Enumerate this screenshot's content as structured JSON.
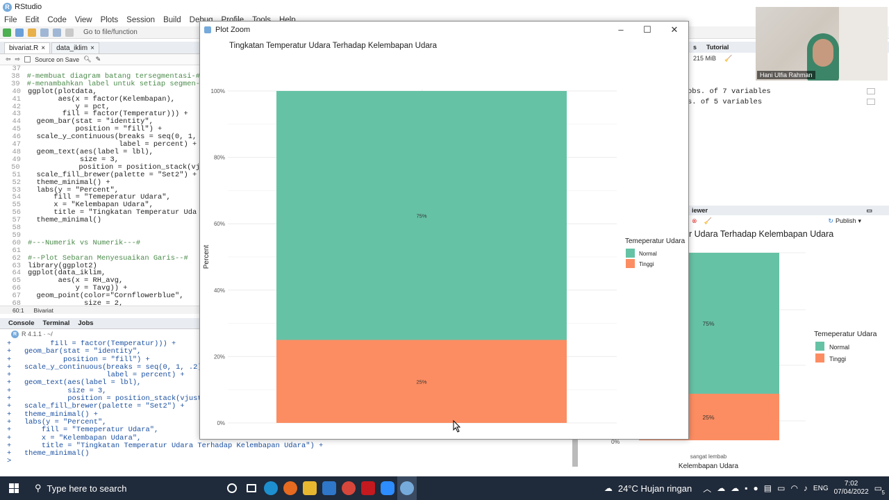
{
  "app": {
    "title": "RStudio",
    "menu": [
      "File",
      "Edit",
      "Code",
      "View",
      "Plots",
      "Session",
      "Build",
      "Debug",
      "Profile",
      "Tools",
      "Help"
    ],
    "goto_file": "Go to file/function"
  },
  "editor": {
    "tabs": [
      "bivariat.R",
      "data_iklim"
    ],
    "source_on_save": "Source on Save",
    "lines": [
      {
        "n": "37",
        "t": ""
      },
      {
        "n": "38",
        "t": "#-membuat diagram batang tersegmentasi-#",
        "c": "cm"
      },
      {
        "n": "39",
        "t": "#-menambahkan label untuk setiap segmen-",
        "c": "cm"
      },
      {
        "n": "40",
        "t": "ggplot(plotdata,"
      },
      {
        "n": "41",
        "t": "       aes(x = factor(Kelembapan),"
      },
      {
        "n": "42",
        "t": "           y = pct,"
      },
      {
        "n": "43",
        "t": "        fill = factor(Temperatur))) +"
      },
      {
        "n": "44",
        "t": "  geom_bar(stat = \"identity\","
      },
      {
        "n": "45",
        "t": "           position = \"fill\") +"
      },
      {
        "n": "46",
        "t": "  scale_y_continuous(breaks = seq(0, 1,"
      },
      {
        "n": "47",
        "t": "                     label = percent) +"
      },
      {
        "n": "48",
        "t": "  geom_text(aes(label = lbl),"
      },
      {
        "n": "49",
        "t": "            size = 3,"
      },
      {
        "n": "50",
        "t": "            position = position_stack(vj"
      },
      {
        "n": "51",
        "t": "  scale_fill_brewer(palette = \"Set2\") +"
      },
      {
        "n": "52",
        "t": "  theme_minimal() +"
      },
      {
        "n": "53",
        "t": "  labs(y = \"Percent\","
      },
      {
        "n": "54",
        "t": "      fill = \"Temeperatur Udara\","
      },
      {
        "n": "55",
        "t": "      x = \"Kelembapan Udara\","
      },
      {
        "n": "56",
        "t": "      title = \"Tingkatan Temperatur Uda"
      },
      {
        "n": "57",
        "t": "  theme_minimal()"
      },
      {
        "n": "58",
        "t": ""
      },
      {
        "n": "59",
        "t": ""
      },
      {
        "n": "60",
        "t": "#---Numerik vs Numerik---#",
        "c": "cm"
      },
      {
        "n": "61",
        "t": ""
      },
      {
        "n": "62",
        "t": "#--Plot Sebaran Menyesuaikan Garis--#",
        "c": "cm"
      },
      {
        "n": "63",
        "t": "library(ggplot2)"
      },
      {
        "n": "64",
        "t": "ggplot(data_iklim,"
      },
      {
        "n": "65",
        "t": "       aes(x = RH_avg,"
      },
      {
        "n": "66",
        "t": "           y = Tavg)) +"
      },
      {
        "n": "67",
        "t": "  geom_point(color=\"Cornflowerblue\","
      },
      {
        "n": "68",
        "t": "             size = 2,"
      }
    ],
    "status_pos": "60:1",
    "status_file": "Bivariat"
  },
  "console": {
    "tabs": [
      "Console",
      "Terminal",
      "Jobs"
    ],
    "version": "R 4.1.1 · ~/",
    "lines": [
      "+         fill = factor(Temperatur))) +",
      "+   geom_bar(stat = \"identity\",",
      "+            position = \"fill\") +",
      "+   scale_y_continuous(breaks = seq(0, 1, .2),",
      "+                      label = percent) +",
      "+   geom_text(aes(label = lbl),",
      "+             size = 3,",
      "+             position = position_stack(vjust =",
      "+   scale_fill_brewer(palette = \"Set2\") +",
      "+   theme_minimal() +",
      "+   labs(y = \"Percent\",",
      "+       fill = \"Temeperatur Udara\",",
      "+       x = \"Kelembapan Udara\",",
      "+       title = \"Tingkatan Temperatur Udara Terhadap Kelembapan Udara\") +",
      "+   theme_minimal()",
      ">"
    ]
  },
  "environment": {
    "tab": "Tutorial",
    "memory": "215 MiB",
    "rows": [
      "obs. of 7 variables",
      "s. of 5 variables"
    ]
  },
  "viewer": {
    "tab": "iewer",
    "publish": "Publish",
    "plot_title": "r Udara Terhadap Kelembapan Udara",
    "legend_title": "Temeperatur Udara",
    "legend": [
      "Normal",
      "Tinggi"
    ],
    "label_top": "75%",
    "label_bottom": "25%",
    "tick": "0%",
    "x_tick": "sangat lembab",
    "xlabel": "Kelembapan Udara"
  },
  "webcam": {
    "name": "Hani Ulfia Rahman"
  },
  "plot_window": {
    "title": "Plot Zoom"
  },
  "colors": {
    "normal": "#66c2a5",
    "tinggi": "#fc8d62"
  },
  "chart_data": {
    "type": "bar",
    "title": "Tingkatan Temperatur Udara Terhadap Kelembapan Udara",
    "xlabel": "Kelembapan Udara",
    "ylabel": "Percent",
    "categories": [
      "sangat lembab"
    ],
    "series": [
      {
        "name": "Normal",
        "values": [
          75
        ],
        "label": "75%"
      },
      {
        "name": "Tinggi",
        "values": [
          25
        ],
        "label": "25%"
      }
    ],
    "stacked": true,
    "ylim": [
      0,
      100
    ],
    "yticks": [
      "0%",
      "20%",
      "40%",
      "60%",
      "80%",
      "100%"
    ],
    "legend_title": "Temeperatur Udara",
    "legend_position": "right",
    "grid": true
  },
  "taskbar": {
    "search_placeholder": "Type here to search",
    "weather": "24°C  Hujan ringan",
    "language": "ENG",
    "time": "7:02",
    "date": "07/04/2022",
    "notifications": "5"
  }
}
